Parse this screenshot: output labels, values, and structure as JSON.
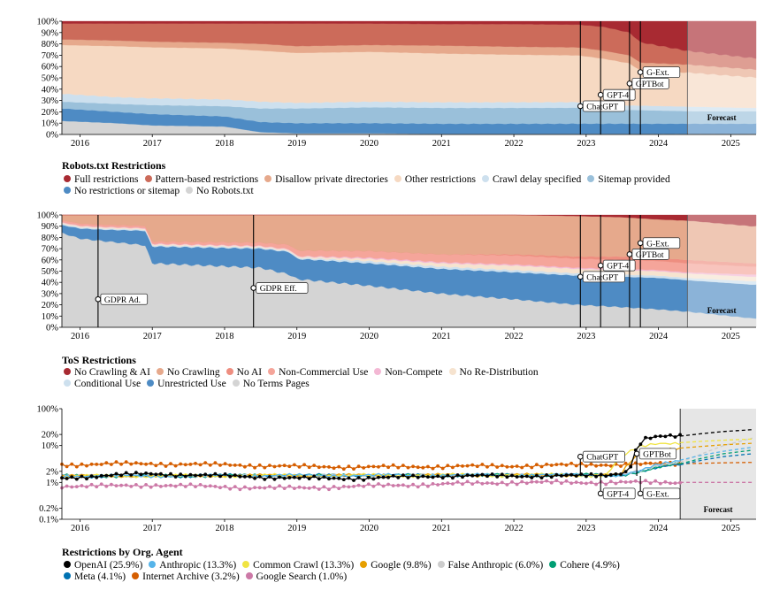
{
  "chart_data": [
    {
      "type": "area",
      "stacked": true,
      "title": "Robots.txt Restrictions",
      "x": [
        2015.75,
        2016.5,
        2017.0,
        2018.0,
        2018.5,
        2019.0,
        2020.0,
        2021.0,
        2022.0,
        2022.9,
        2023.25,
        2023.6,
        2023.75,
        2024.4,
        2025.3
      ],
      "forecast_start": 2024.4,
      "forecast_label": "Forecast",
      "ylim": [
        0,
        100
      ],
      "y_ticks": [
        "0%",
        "10%",
        "20%",
        "30%",
        "40%",
        "50%",
        "60%",
        "70%",
        "80%",
        "90%",
        "100%"
      ],
      "x_ticks": [
        "2016",
        "2017",
        "2018",
        "2019",
        "2020",
        "2021",
        "2022",
        "2023",
        "2024",
        "2025"
      ],
      "series": [
        {
          "name": "No Robots.txt",
          "color": "#d4d4d4",
          "values": [
            12,
            10,
            8,
            7,
            2,
            1,
            1,
            0.5,
            0.5,
            0.5,
            0.5,
            0.5,
            0.5,
            0.5,
            0.5
          ]
        },
        {
          "name": "No restrictions or sitemap",
          "color": "#4e8bc4",
          "values": [
            11,
            10,
            10,
            9,
            9,
            9,
            9,
            9,
            9,
            9,
            9,
            9,
            9,
            9,
            9
          ]
        },
        {
          "name": "Sitemap provided",
          "color": "#9ac0da",
          "values": [
            6,
            7,
            8,
            9,
            12,
            13,
            14,
            14,
            14,
            14,
            13,
            12,
            12,
            11,
            11
          ]
        },
        {
          "name": "Crawl delay specified",
          "color": "#cde0ee",
          "values": [
            7,
            6,
            6,
            6,
            6,
            5,
            5,
            5,
            5,
            5,
            4,
            4,
            4,
            4,
            3
          ]
        },
        {
          "name": "Other restrictions",
          "color": "#f6d9c2",
          "values": [
            43,
            45,
            45,
            45,
            45,
            44,
            44,
            43,
            42,
            41,
            40,
            37,
            31,
            30,
            27
          ]
        },
        {
          "name": "Disallow private directories",
          "color": "#e6a98c",
          "values": [
            5,
            5,
            5,
            5,
            6,
            6,
            6,
            7,
            7,
            7,
            7,
            7,
            7,
            7,
            7
          ]
        },
        {
          "name": "Pattern-based restrictions",
          "color": "#cc6b5a",
          "values": [
            14,
            15,
            16,
            17,
            18,
            20,
            19,
            19,
            20,
            20,
            21,
            20,
            18,
            12,
            10
          ]
        },
        {
          "name": "Full restrictions",
          "color": "#a82a32",
          "values": [
            2,
            2,
            2,
            2,
            2,
            2,
            2,
            2.5,
            2.5,
            3,
            5,
            10,
            18.5,
            26,
            32.5
          ]
        }
      ],
      "events": [
        {
          "label": "ChatGPT",
          "x": 2022.92,
          "y": 25
        },
        {
          "label": "GPT-4",
          "x": 2023.2,
          "y": 35
        },
        {
          "label": "GPTBot",
          "x": 2023.6,
          "y": 45
        },
        {
          "label": "G-Ext.",
          "x": 2023.75,
          "y": 55
        }
      ]
    },
    {
      "type": "area",
      "stacked": true,
      "title": "ToS Restrictions",
      "x": [
        2015.75,
        2016.0,
        2016.3,
        2016.9,
        2017.0,
        2018.5,
        2018.9,
        2019.0,
        2020.0,
        2021.0,
        2022.0,
        2022.9,
        2023.5,
        2024.0,
        2024.4,
        2025.3
      ],
      "forecast_start": 2024.4,
      "forecast_label": "Forecast",
      "ylim": [
        0,
        100
      ],
      "y_ticks": [
        "0%",
        "10%",
        "20%",
        "30%",
        "40%",
        "50%",
        "60%",
        "70%",
        "80%",
        "90%",
        "100%"
      ],
      "x_ticks": [
        "2016",
        "2017",
        "2018",
        "2019",
        "2020",
        "2021",
        "2022",
        "2023",
        "2024",
        "2025"
      ],
      "series": [
        {
          "name": "No Terms Pages",
          "color": "#d4d4d4",
          "values": [
            84,
            79,
            77,
            73,
            57,
            53,
            47,
            43,
            37,
            30,
            25,
            20,
            18,
            16,
            14,
            8
          ]
        },
        {
          "name": "Unrestricted Use",
          "color": "#4e8bc4",
          "values": [
            7,
            9,
            10,
            13,
            15,
            17,
            20,
            18,
            20,
            22,
            24,
            26,
            27,
            28,
            28,
            30
          ]
        },
        {
          "name": "Conditional Use",
          "color": "#cde0ee",
          "values": [
            1,
            1,
            1,
            1,
            1,
            1,
            1,
            1,
            2,
            2,
            2,
            2,
            2,
            2,
            2,
            3
          ]
        },
        {
          "name": "No Re-Distribution",
          "color": "#f6e3cf",
          "values": [
            1,
            1,
            1,
            1,
            1,
            1,
            1,
            1,
            2,
            3,
            4,
            4,
            4,
            4,
            4,
            4
          ]
        },
        {
          "name": "Non-Compete",
          "color": "#f3b8d4",
          "values": [
            0.5,
            0.5,
            0.5,
            0.5,
            0.5,
            0.5,
            0.5,
            0.5,
            1,
            1,
            1,
            1,
            1,
            1,
            1,
            2
          ]
        },
        {
          "name": "Non-Commercial Use",
          "color": "#f5a59a",
          "values": [
            2,
            2,
            2,
            2,
            2,
            3,
            4,
            5,
            6,
            7,
            8,
            8,
            8,
            8,
            8,
            7
          ]
        },
        {
          "name": "No AI",
          "color": "#ee8e80",
          "values": [
            0,
            0,
            0,
            0,
            0,
            0,
            0,
            0,
            0,
            0,
            1,
            2,
            3,
            3,
            3,
            3
          ]
        },
        {
          "name": "No Crawling",
          "color": "#e6a98c",
          "values": [
            4.5,
            7.5,
            8.5,
            9.5,
            23.5,
            24.5,
            26.5,
            31.5,
            32,
            35,
            35,
            36,
            35,
            34,
            35,
            33
          ]
        },
        {
          "name": "No Crawling & AI",
          "color": "#a82a32",
          "values": [
            0,
            0,
            0,
            0,
            0,
            0,
            0,
            0,
            0,
            0,
            0,
            1,
            2,
            4,
            5,
            10
          ]
        }
      ],
      "events": [
        {
          "label": "GDPR Ad.",
          "x": 2016.25,
          "y": 25
        },
        {
          "label": "GDPR Eff.",
          "x": 2018.4,
          "y": 35
        },
        {
          "label": "ChatGPT",
          "x": 2022.92,
          "y": 45
        },
        {
          "label": "GPT-4",
          "x": 2023.2,
          "y": 55
        },
        {
          "label": "GPTBot",
          "x": 2023.6,
          "y": 65
        },
        {
          "label": "G-Ext.",
          "x": 2023.75,
          "y": 75
        }
      ]
    },
    {
      "type": "line",
      "title": "Restrictions by Org. Agent",
      "yscale": "log",
      "ylim": [
        0.1,
        100
      ],
      "y_ticks": [
        {
          "v": 100,
          "l": "100%"
        },
        {
          "v": 20,
          "l": "20%"
        },
        {
          "v": 10,
          "l": "10%"
        },
        {
          "v": 2,
          "l": "2%"
        },
        {
          "v": 1,
          "l": "1%"
        },
        {
          "v": 0.2,
          "l": "0.2%"
        },
        {
          "v": 0.1,
          "l": "0.1%"
        }
      ],
      "x_ticks": [
        "2016",
        "2017",
        "2018",
        "2019",
        "2020",
        "2021",
        "2022",
        "2023",
        "2024",
        "2025"
      ],
      "forecast_start": 2024.3,
      "forecast_label": "Forecast",
      "series": [
        {
          "name": "OpenAI (25.9%)",
          "color": "#000000",
          "x": [
            2015.75,
            2016.5,
            2017.0,
            2018.0,
            2019.0,
            2020.0,
            2021.0,
            2022.0,
            2022.9,
            2023.3,
            2023.6,
            2023.7,
            2023.8,
            2024.0,
            2024.3
          ],
          "values": [
            1.3,
            1.6,
            1.7,
            1.5,
            1.3,
            1.3,
            1.5,
            1.5,
            1.5,
            1.6,
            2.0,
            8.0,
            15,
            17,
            18
          ],
          "forecast": [
            18,
            21,
            24,
            27
          ]
        },
        {
          "name": "Anthropic (13.3%)",
          "color": "#56b4e9",
          "x": [
            2015.75,
            2023.5,
            2023.75,
            2024.0,
            2024.3
          ],
          "values": [
            1.5,
            1.6,
            2.0,
            3.0,
            4.0
          ],
          "forecast": [
            4.0,
            5.5,
            7.0,
            9.0
          ]
        },
        {
          "name": "Common Crawl (13.3%)",
          "color": "#f0e442",
          "x": [
            2015.75,
            2023.3,
            2023.75,
            2024.0,
            2024.3
          ],
          "values": [
            1.5,
            1.6,
            9.0,
            11.5,
            12
          ],
          "forecast": [
            12,
            13,
            14,
            15
          ]
        },
        {
          "name": "Google (9.8%)",
          "color": "#e69f00",
          "x": [
            2015.75,
            2023.5,
            2023.75,
            2024.0,
            2024.3
          ],
          "values": [
            1.5,
            1.6,
            6.0,
            8.0,
            8.5
          ],
          "forecast": [
            8.5,
            9.5,
            10.5,
            11.5
          ]
        },
        {
          "name": "False Anthropic (6.0%)",
          "color": "#cccccc",
          "x": [
            2015.75,
            2023.5,
            2023.75,
            2024.0,
            2024.3
          ],
          "values": [
            1.5,
            1.6,
            2.2,
            3.0,
            3.5
          ],
          "forecast": [
            3.5,
            6.0,
            10,
            16
          ]
        },
        {
          "name": "Cohere (4.9%)",
          "color": "#009e73",
          "x": [
            2015.75,
            2023.5,
            2023.75,
            2024.0,
            2024.3
          ],
          "values": [
            1.5,
            1.6,
            2.0,
            2.6,
            3.2
          ],
          "forecast": [
            3.2,
            4.5,
            6.0,
            7.5
          ]
        },
        {
          "name": "Meta (4.1%)",
          "color": "#0072b2",
          "x": [
            2015.75,
            2023.5,
            2023.75,
            2024.0,
            2024.3
          ],
          "values": [
            1.5,
            1.6,
            2.0,
            2.5,
            3.0
          ],
          "forecast": [
            3.0,
            4.0,
            5.0,
            6.0
          ]
        },
        {
          "name": "Internet Archive (3.2%)",
          "color": "#d55e00",
          "x": [
            2015.75,
            2016.5,
            2017.0,
            2018.0,
            2019.0,
            2020.0,
            2021.0,
            2022.0,
            2023.0,
            2024.3
          ],
          "values": [
            3.0,
            3.2,
            3.2,
            3.0,
            2.7,
            2.6,
            2.7,
            2.8,
            3.0,
            3.2
          ],
          "forecast": [
            3.2,
            3.3,
            3.4,
            3.5
          ]
        },
        {
          "name": "Google Search (1.0%)",
          "color": "#cc79a7",
          "x": [
            2015.75,
            2016.5,
            2017.0,
            2018.0,
            2019.0,
            2020.0,
            2021.0,
            2022.0,
            2023.0,
            2024.3
          ],
          "values": [
            0.8,
            0.8,
            0.85,
            0.75,
            0.7,
            0.8,
            0.9,
            1.0,
            1.0,
            1.0
          ],
          "forecast": [
            1.0,
            1.0,
            1.0,
            1.0
          ]
        }
      ],
      "events": [
        {
          "label": "ChatGPT",
          "x": 2022.92,
          "y": 5,
          "dir": "up"
        },
        {
          "label": "GPT-4",
          "x": 2023.2,
          "y": 0.5,
          "dir": "down"
        },
        {
          "label": "GPTBot",
          "x": 2023.7,
          "y": 6,
          "dir": "up"
        },
        {
          "label": "G-Ext.",
          "x": 2023.75,
          "y": 0.5,
          "dir": "down"
        }
      ]
    }
  ]
}
